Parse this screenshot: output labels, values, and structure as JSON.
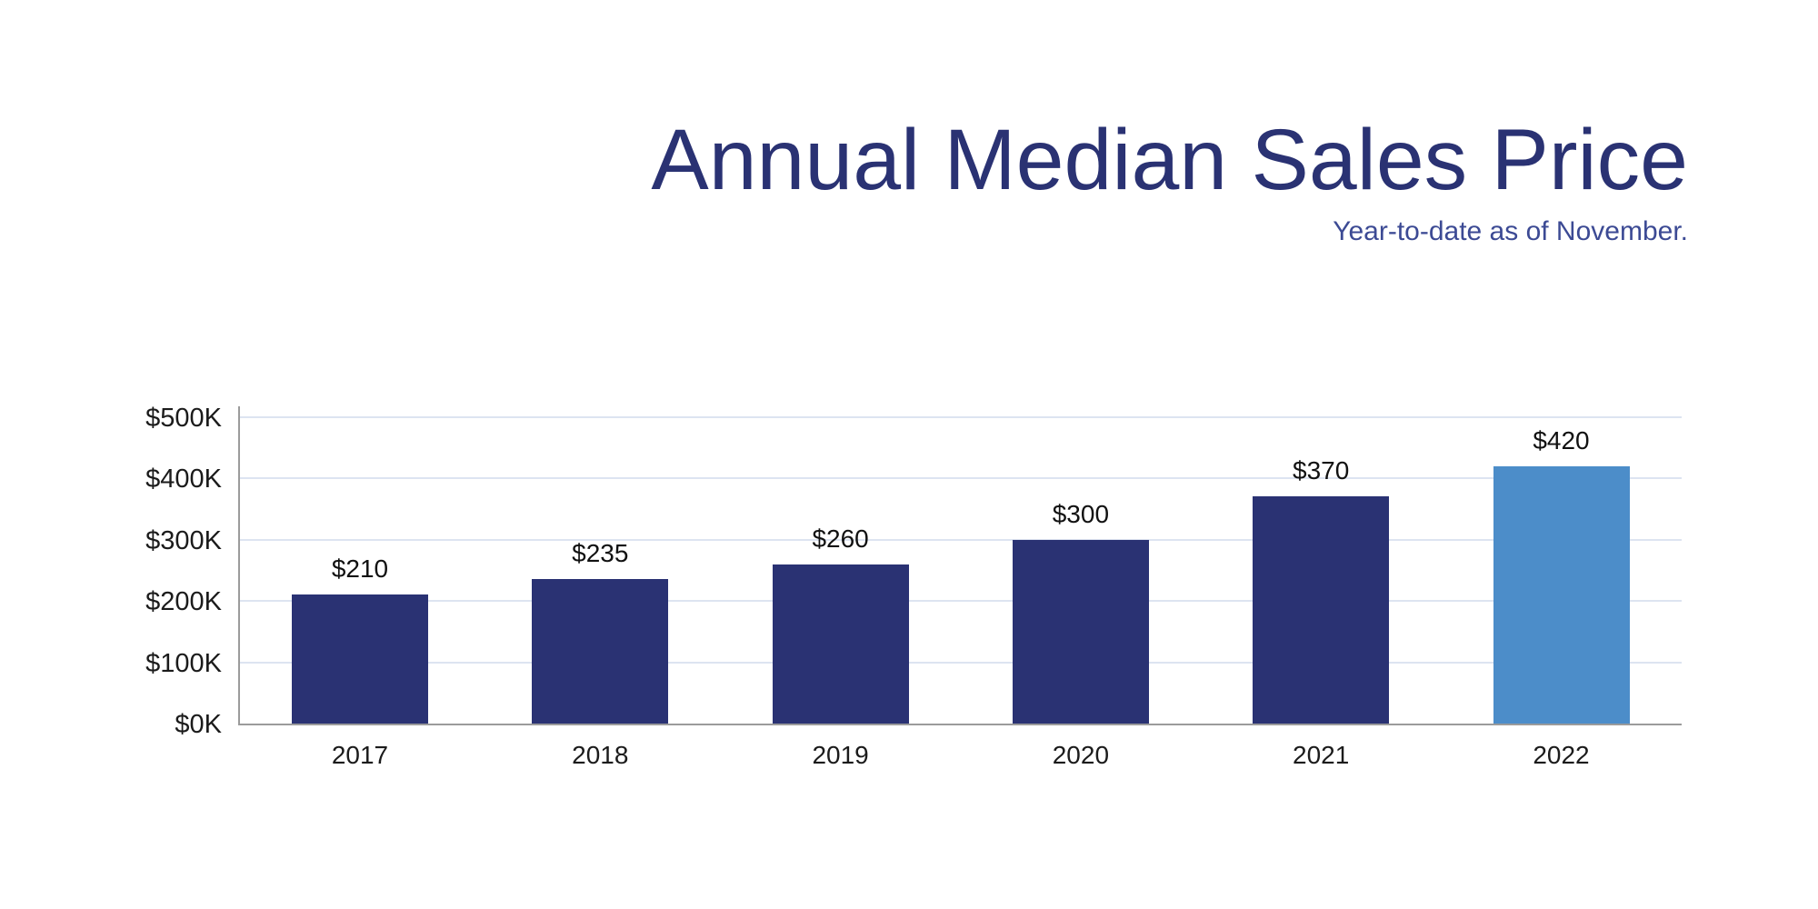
{
  "chart_data": {
    "type": "bar",
    "title": "Annual Median Sales Price",
    "subtitle": "Year-to-date as of November.",
    "categories": [
      "2017",
      "2018",
      "2019",
      "2020",
      "2021",
      "2022"
    ],
    "values": [
      210,
      235,
      260,
      300,
      370,
      420
    ],
    "value_labels": [
      "$210",
      "$235",
      "$260",
      "$300",
      "$370",
      "$420"
    ],
    "unit": "thousand USD",
    "xlabel": "",
    "ylabel": "",
    "ylim": [
      0,
      500
    ],
    "ytick_step": 100,
    "yticks": [
      {
        "value": 0,
        "label": "$0K"
      },
      {
        "value": 100,
        "label": "$100K"
      },
      {
        "value": 200,
        "label": "$200K"
      },
      {
        "value": 300,
        "label": "$300K"
      },
      {
        "value": 400,
        "label": "$400K"
      },
      {
        "value": 500,
        "label": "$500K"
      }
    ],
    "grid": "horizontal",
    "legend": "none",
    "highlight_index": 5,
    "colors": {
      "bar": "#2a3273",
      "highlight_bar": "#4c8dc9",
      "title": "#2a3273",
      "subtitle": "#3c4a94",
      "gridline": "#dde4f1",
      "axis": "#9b9b9b",
      "tick_text": "#1b1b1b",
      "value_text": "#111111",
      "background": "#ffffff"
    }
  }
}
